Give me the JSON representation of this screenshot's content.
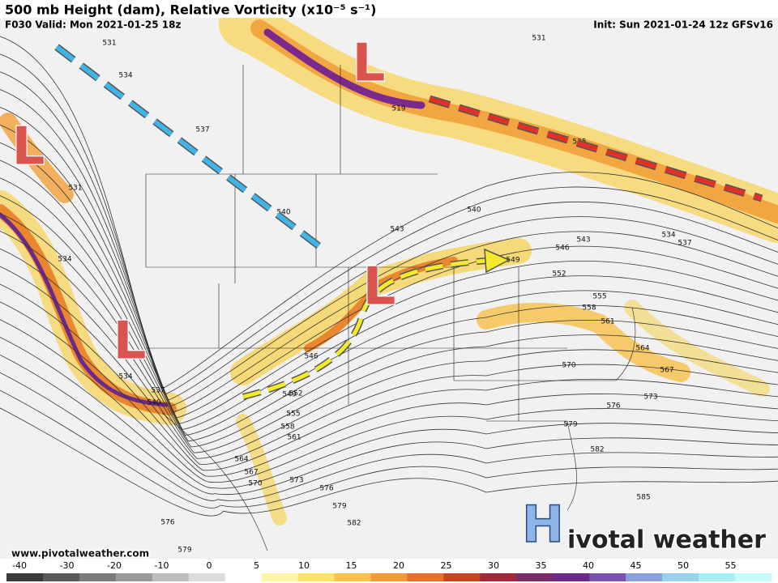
{
  "header": {
    "title": "500 mb Height (dam), Relative Vorticity (x10⁻⁵ s⁻¹)",
    "valid": "F030 Valid: Mon 2021-01-25 18z",
    "init": "Init: Sun 2021-01-24 12z GFSv16"
  },
  "map": {
    "lows": [
      "L",
      "L",
      "L",
      "L"
    ],
    "contour_labels": [
      531,
      534,
      537,
      531,
      519,
      525,
      531,
      534,
      540,
      543,
      540,
      546,
      543,
      549,
      552,
      555,
      558,
      561,
      564,
      567,
      570,
      573,
      576,
      579,
      582,
      585,
      534,
      537,
      534,
      537,
      540,
      546,
      549,
      552,
      555,
      558,
      561,
      564,
      567,
      570,
      573,
      576,
      579,
      582,
      576,
      579
    ]
  },
  "footer": {
    "url": "www.pivotalweather.com",
    "logo_letter": "H",
    "logo_text": "ivotal weather"
  },
  "colorbar": {
    "ticks": [
      -40,
      -30,
      -20,
      -10,
      0,
      5,
      10,
      15,
      20,
      25,
      30,
      35,
      40,
      45,
      50,
      55
    ]
  }
}
